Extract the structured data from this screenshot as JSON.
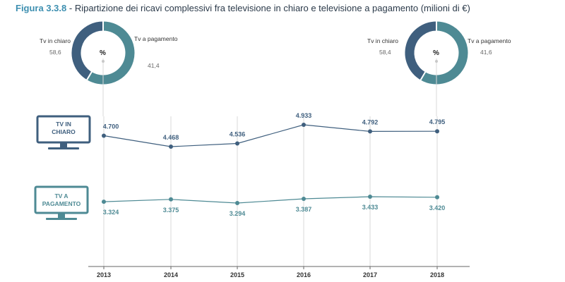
{
  "title": {
    "figure": "Figura 3.3.8",
    "separator": " - ",
    "text": "Ripartizione dei ricavi complessivi fra televisione in chiaro e televisione a pagamento (milioni di €)"
  },
  "colors": {
    "chiaro": "#3f5f7e",
    "pagamento": "#4e8a94",
    "grid": "#d8d8d8",
    "axis": "#666666"
  },
  "icons": {
    "chiaro": "tv-icon",
    "pagamento": "tv-icon"
  },
  "tv_labels": {
    "chiaro": [
      "TV IN",
      "CHIARO"
    ],
    "pagamento": [
      "TV A",
      "PAGAMENTO"
    ]
  },
  "donuts": [
    {
      "year": "2013",
      "center": "%",
      "chiaro_label": "Tv in chiaro",
      "chiaro_value": "58,6",
      "pagamento_label": "Tv a pagamento",
      "pagamento_value": "41,4",
      "chiaro_share": 58.6,
      "pagamento_share": 41.4
    },
    {
      "year": "2018",
      "center": "%",
      "chiaro_label": "Tv in chiaro",
      "chiaro_value": "58,4",
      "pagamento_label": "Tv a pagamento",
      "pagamento_value": "41,6",
      "chiaro_share": 58.4,
      "pagamento_share": 41.6
    }
  ],
  "chart_data": {
    "type": "line",
    "title": "Ripartizione dei ricavi complessivi fra televisione in chiaro e televisione a pagamento (milioni di €)",
    "categories": [
      "2013",
      "2014",
      "2015",
      "2016",
      "2017",
      "2018"
    ],
    "series": [
      {
        "name": "TV IN CHIARO",
        "key": "chiaro",
        "values": [
          4700,
          4468,
          4536,
          4933,
          4792,
          4795
        ],
        "labels": [
          "4.700",
          "4.468",
          "4.536",
          "4.933",
          "4.792",
          "4.795"
        ]
      },
      {
        "name": "TV A PAGAMENTO",
        "key": "pagamento",
        "values": [
          3324,
          3375,
          3294,
          3387,
          3433,
          3420
        ],
        "labels": [
          "3.324",
          "3.375",
          "3.294",
          "3.387",
          "3.433",
          "3.420"
        ]
      }
    ],
    "grid": "vertical",
    "legend": "left"
  }
}
